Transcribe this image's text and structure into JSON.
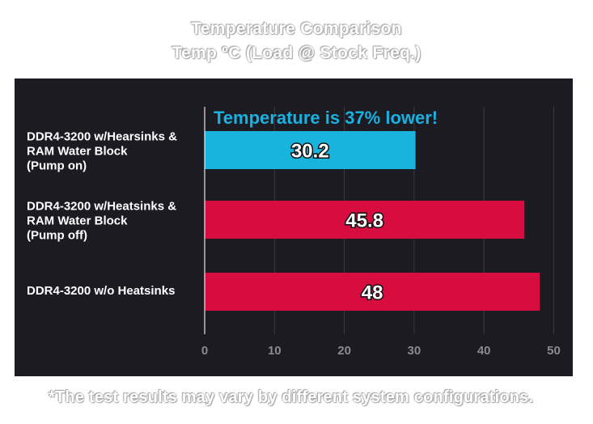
{
  "title_line1": "Temperature Comparison",
  "title_line2": "Temp ºC (Load @ Stock Freq.)",
  "callout": "Temperature is 37% lower!",
  "footnote": "*The test results may vary by different system configurations.",
  "colors": {
    "panel_bg": "#1c1b22",
    "highlight_bar": "#19b4dd",
    "default_bar": "#d60d3e",
    "callout_text": "#1ab0e0"
  },
  "chart_data": {
    "type": "bar",
    "orientation": "horizontal",
    "categories": [
      [
        "DDR4-3200 w/Hearsinks &",
        "RAM Water Block",
        "(Pump on)"
      ],
      [
        "DDR4-3200 w/Heatsinks &",
        "RAM Water Block",
        "(Pump off)"
      ],
      [
        "DDR4-3200 w/o Heatsinks"
      ]
    ],
    "values": [
      30.2,
      45.8,
      48
    ],
    "data_labels": [
      "30.2",
      "45.8",
      "48"
    ],
    "bar_colors": [
      "#19b4dd",
      "#d60d3e",
      "#d60d3e"
    ],
    "xlim": [
      0,
      50
    ],
    "xticks": [
      0,
      10,
      20,
      30,
      40,
      50
    ],
    "xtick_labels": [
      "0",
      "10",
      "20",
      "30",
      "40",
      "50"
    ],
    "grid": true
  }
}
